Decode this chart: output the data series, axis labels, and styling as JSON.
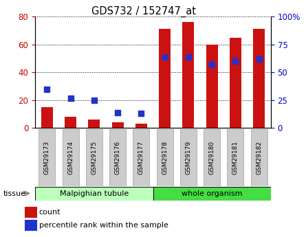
{
  "title": "GDS732 / 152747_at",
  "samples": [
    "GSM29173",
    "GSM29174",
    "GSM29175",
    "GSM29176",
    "GSM29177",
    "GSM29178",
    "GSM29179",
    "GSM29180",
    "GSM29181",
    "GSM29182"
  ],
  "count_values": [
    15,
    8,
    6,
    4,
    3,
    71,
    76,
    60,
    65,
    71
  ],
  "percentile_values": [
    35,
    27,
    25,
    14,
    13,
    64,
    64,
    57,
    60,
    62
  ],
  "groups": [
    {
      "label": "Malpighian tubule",
      "start": 0,
      "end": 5,
      "color": "#bbffbb"
    },
    {
      "label": "whole organism",
      "start": 5,
      "end": 10,
      "color": "#44dd44"
    }
  ],
  "left_ylim": [
    0,
    80
  ],
  "right_ylim": [
    0,
    100
  ],
  "left_yticks": [
    0,
    20,
    40,
    60,
    80
  ],
  "right_yticks": [
    0,
    25,
    50,
    75,
    100
  ],
  "right_yticklabels": [
    "0",
    "25",
    "50",
    "75",
    "100%"
  ],
  "bar_color": "#cc1111",
  "dot_color": "#2233cc",
  "tissue_label": "tissue",
  "legend_count_label": "count",
  "legend_percentile_label": "percentile rank within the sample",
  "left_ylabel_color": "#cc0000",
  "right_ylabel_color": "#0000cc",
  "bar_width": 0.5,
  "dot_size": 35,
  "tick_box_color": "#cccccc",
  "tick_box_edge": "#aaaaaa",
  "plot_bg": "#ffffff",
  "fig_bg": "#ffffff"
}
